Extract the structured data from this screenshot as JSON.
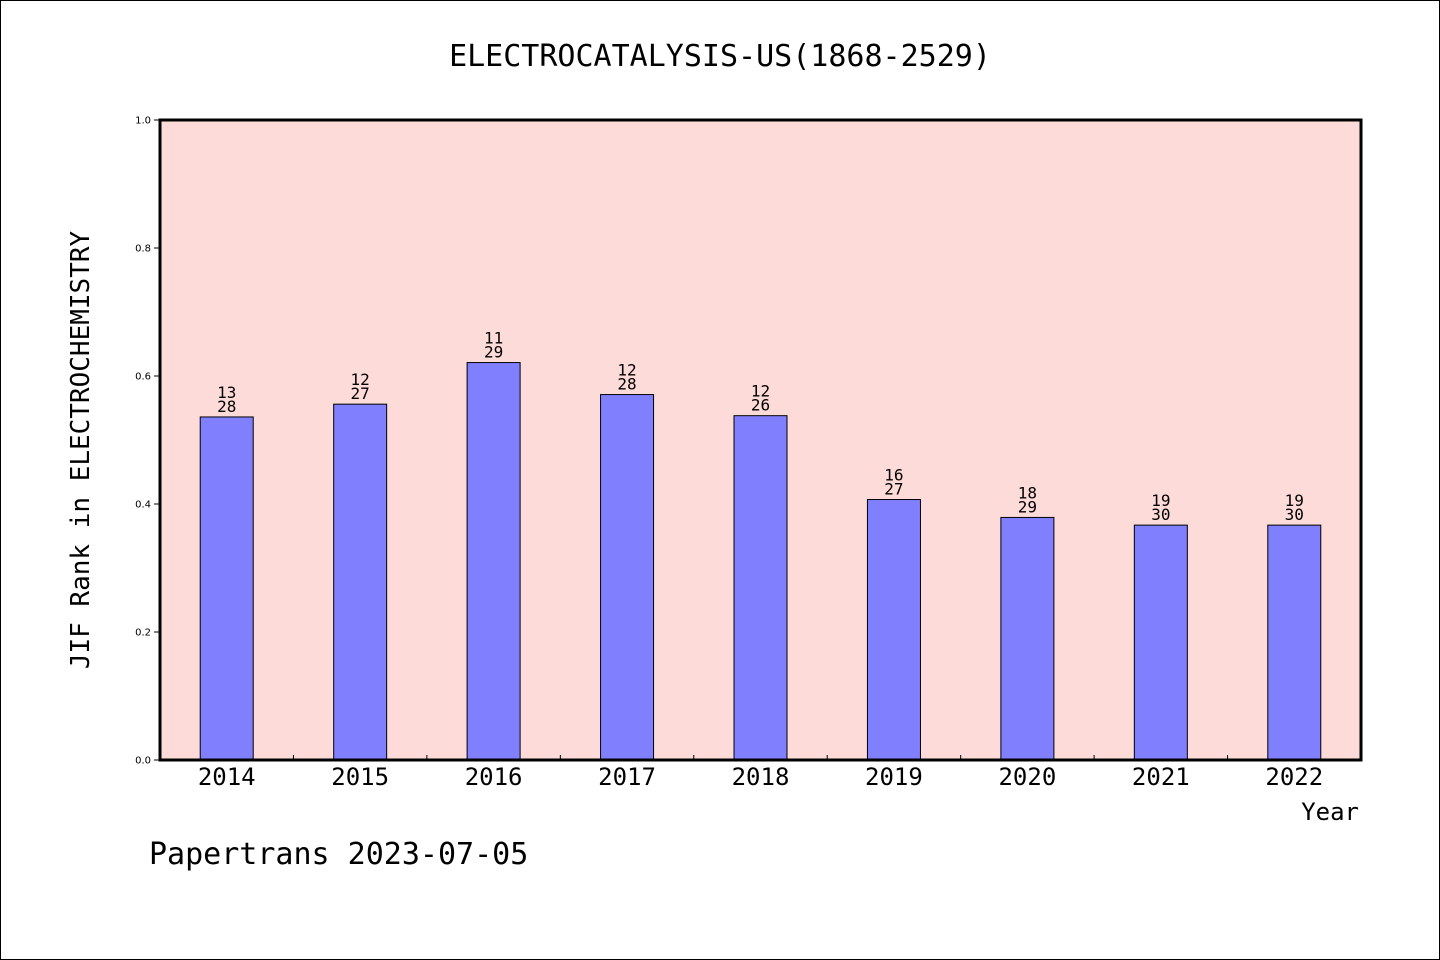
{
  "chart_data": {
    "type": "bar",
    "title": "ELECTROCATALYSIS-US(1868-2529)",
    "xlabel": "Year",
    "ylabel": "JIF Rank in ELECTROCHEMISTRY",
    "ylim": [
      0,
      1.0
    ],
    "yticks": [
      "0.0",
      "0.2",
      "0.4",
      "0.6",
      "0.8",
      "1.0"
    ],
    "categories": [
      "2014",
      "2015",
      "2016",
      "2017",
      "2018",
      "2019",
      "2020",
      "2021",
      "2022"
    ],
    "values": [
      0.536,
      0.556,
      0.621,
      0.571,
      0.538,
      0.407,
      0.379,
      0.367,
      0.367
    ],
    "rank_labels": [
      "13",
      "12",
      "11",
      "12",
      "12",
      "16",
      "18",
      "19",
      "19"
    ],
    "total_labels": [
      "28",
      "27",
      "29",
      "28",
      "26",
      "27",
      "29",
      "30",
      "30"
    ],
    "grid": false,
    "colors": {
      "plot_bg": "#FDDBD8",
      "bar": "#8080FF",
      "bar_edge": "#000000"
    }
  },
  "footer": {
    "text": "Papertrans 2023-07-05"
  }
}
